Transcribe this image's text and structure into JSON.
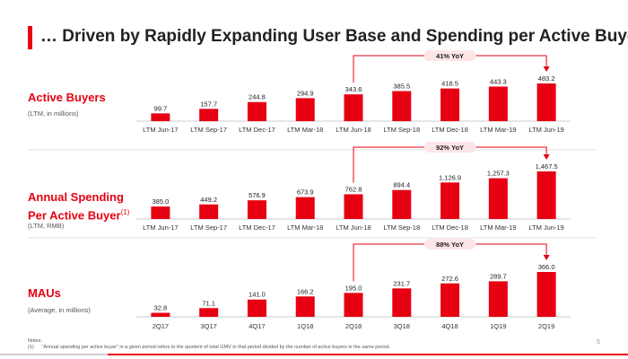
{
  "page": {
    "title": "… Driven by Rapidly Expanding User Base and Spending per Active Buyer",
    "page_number": "5",
    "accent_color": "#e60012"
  },
  "sections": [
    {
      "title": "Active Buyers",
      "subtitle": "(LTM, in millions)"
    },
    {
      "title_line1": "Annual Spending",
      "title_line2": "Per Active Buyer",
      "footnote_mark": "(1)",
      "subtitle": "(LTM, RMB)"
    },
    {
      "title": "MAUs",
      "subtitle": "(Average, in millions)"
    }
  ],
  "notes": {
    "heading": "Notes:",
    "items": [
      {
        "num": "(1)",
        "text": "“Annual spending per active buyer” in a given period refers to the quotient of total GMV in that period divided by the number of active buyers in the same period."
      }
    ]
  },
  "chart_data": [
    {
      "type": "bar",
      "title": "Active Buyers",
      "categories": [
        "LTM Jun-17",
        "LTM Sep-17",
        "LTM Dec-17",
        "LTM Mar-18",
        "LTM Jun-18",
        "LTM Sep-18",
        "LTM Dec-18",
        "LTM Mar-19",
        "LTM Jun-19"
      ],
      "values": [
        99.7,
        157.7,
        244.8,
        294.9,
        343.6,
        385.5,
        418.5,
        443.3,
        483.2
      ],
      "labels": [
        "99.7",
        "157.7",
        "244.8",
        "294.9",
        "343.6",
        "385.5",
        "418.5",
        "443.3",
        "483.2"
      ],
      "annotation": {
        "text": "41% YoY",
        "from_index": 4,
        "to_index": 8
      },
      "bar_color": "#e60012"
    },
    {
      "type": "bar",
      "title": "Annual Spending Per Active Buyer",
      "categories": [
        "LTM Jun-17",
        "LTM Sep-17",
        "LTM Dec-17",
        "LTM Mar-18",
        "LTM Jun-18",
        "LTM Sep-18",
        "LTM Dec-18",
        "LTM Mar-19",
        "LTM Jun-19"
      ],
      "values": [
        385.0,
        449.2,
        576.9,
        673.9,
        762.8,
        894.4,
        1126.9,
        1257.3,
        1467.5
      ],
      "labels": [
        "385.0",
        "449.2",
        "576.9",
        "673.9",
        "762.8",
        "894.4",
        "1,126.9",
        "1,257.3",
        "1,467.5"
      ],
      "annotation": {
        "text": "92% YoY",
        "from_index": 4,
        "to_index": 8
      },
      "bar_color": "#e60012"
    },
    {
      "type": "bar",
      "title": "MAUs",
      "categories": [
        "2Q17",
        "3Q17",
        "4Q17",
        "1Q18",
        "2Q18",
        "3Q18",
        "4Q18",
        "1Q19",
        "2Q19"
      ],
      "values": [
        32.8,
        71.1,
        141.0,
        166.2,
        195.0,
        231.7,
        272.6,
        289.7,
        366.0
      ],
      "labels": [
        "32.8",
        "71.1",
        "141.0",
        "166.2",
        "195.0",
        "231.7",
        "272.6",
        "289.7",
        "366.0"
      ],
      "annotation": {
        "text": "88% YoY",
        "from_index": 4,
        "to_index": 8
      },
      "bar_color": "#e60012"
    }
  ]
}
